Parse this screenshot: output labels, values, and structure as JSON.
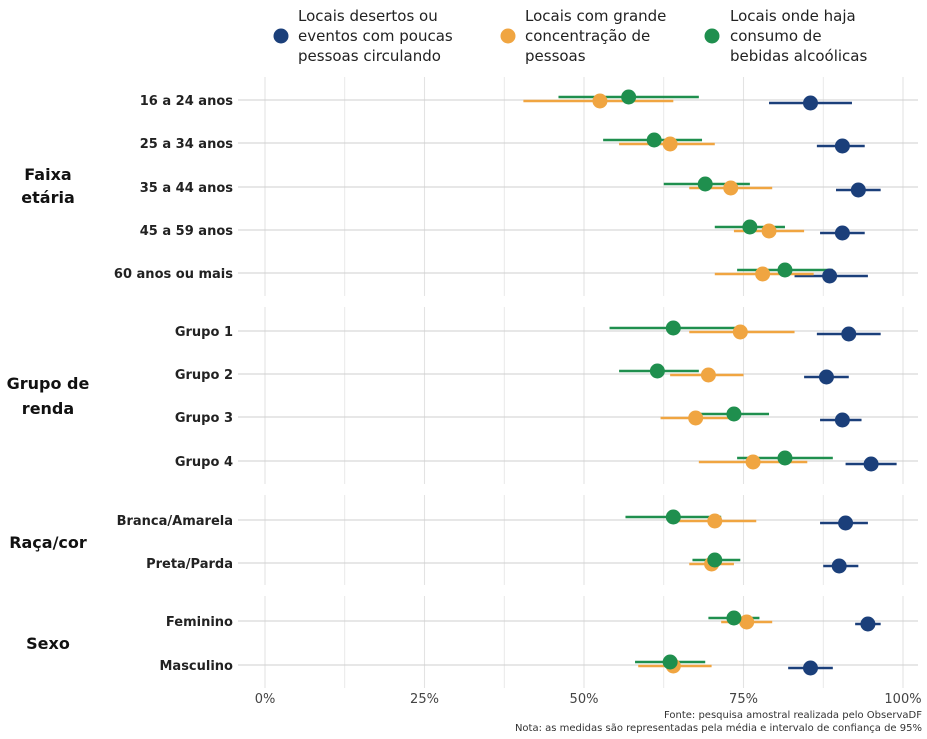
{
  "chart_data": {
    "type": "scatter",
    "subtype": "dot-and-whisker",
    "title": "",
    "xlabel": "",
    "ylabel": "",
    "xlim": [
      0,
      1
    ],
    "x_ticks": [
      0,
      0.25,
      0.5,
      0.75,
      1.0
    ],
    "x_tick_labels": [
      "0%",
      "25%",
      "50%",
      "75%",
      "100%"
    ],
    "grid": true,
    "legend_position": "top",
    "series": [
      {
        "name": "Locais desertos ou eventos com poucas pessoas circulando",
        "color": "#1b3f7a"
      },
      {
        "name": "Locais com grande concentração de pessoas",
        "color": "#f0a541"
      },
      {
        "name": "Locais onde haja consumo de bebidas alcoólicas",
        "color": "#1f8f4e"
      }
    ],
    "legend_lines": [
      [
        "Locais desertos ou",
        "eventos com poucas",
        "pessoas circulando"
      ],
      [
        "Locais com grande",
        "concentração de",
        "pessoas"
      ],
      [
        "Locais onde haja",
        "consumo de",
        "bebidas alcoólicas"
      ]
    ],
    "groups": [
      {
        "label_lines": [
          "Faixa",
          "etária"
        ],
        "categories": [
          {
            "label": "16 a 24 anos",
            "values": [
              {
                "mean": 0.855,
                "low": 0.79,
                "high": 0.92
              },
              {
                "mean": 0.525,
                "low": 0.405,
                "high": 0.64
              },
              {
                "mean": 0.57,
                "low": 0.46,
                "high": 0.68
              }
            ]
          },
          {
            "label": "25 a 34 anos",
            "values": [
              {
                "mean": 0.905,
                "low": 0.865,
                "high": 0.94
              },
              {
                "mean": 0.635,
                "low": 0.555,
                "high": 0.705
              },
              {
                "mean": 0.61,
                "low": 0.53,
                "high": 0.685
              }
            ]
          },
          {
            "label": "35 a 44 anos",
            "values": [
              {
                "mean": 0.93,
                "low": 0.895,
                "high": 0.965
              },
              {
                "mean": 0.73,
                "low": 0.665,
                "high": 0.795
              },
              {
                "mean": 0.69,
                "low": 0.625,
                "high": 0.76
              }
            ]
          },
          {
            "label": "45 a 59 anos",
            "values": [
              {
                "mean": 0.905,
                "low": 0.87,
                "high": 0.94
              },
              {
                "mean": 0.79,
                "low": 0.735,
                "high": 0.845
              },
              {
                "mean": 0.76,
                "low": 0.705,
                "high": 0.815
              }
            ]
          },
          {
            "label": "60 anos ou mais",
            "values": [
              {
                "mean": 0.885,
                "low": 0.83,
                "high": 0.945
              },
              {
                "mean": 0.78,
                "low": 0.705,
                "high": 0.86
              },
              {
                "mean": 0.815,
                "low": 0.74,
                "high": 0.89
              }
            ]
          }
        ]
      },
      {
        "label_lines": [
          "Grupo de",
          "renda"
        ],
        "categories": [
          {
            "label": "Grupo 1",
            "values": [
              {
                "mean": 0.915,
                "low": 0.865,
                "high": 0.965
              },
              {
                "mean": 0.745,
                "low": 0.665,
                "high": 0.83
              },
              {
                "mean": 0.64,
                "low": 0.54,
                "high": 0.745
              }
            ]
          },
          {
            "label": "Grupo 2",
            "values": [
              {
                "mean": 0.88,
                "low": 0.845,
                "high": 0.915
              },
              {
                "mean": 0.695,
                "low": 0.635,
                "high": 0.75
              },
              {
                "mean": 0.615,
                "low": 0.555,
                "high": 0.68
              }
            ]
          },
          {
            "label": "Grupo 3",
            "values": [
              {
                "mean": 0.905,
                "low": 0.87,
                "high": 0.935
              },
              {
                "mean": 0.675,
                "low": 0.62,
                "high": 0.735
              },
              {
                "mean": 0.735,
                "low": 0.68,
                "high": 0.79
              }
            ]
          },
          {
            "label": "Grupo 4",
            "values": [
              {
                "mean": 0.95,
                "low": 0.91,
                "high": 0.99
              },
              {
                "mean": 0.765,
                "low": 0.68,
                "high": 0.85
              },
              {
                "mean": 0.815,
                "low": 0.74,
                "high": 0.89
              }
            ]
          }
        ]
      },
      {
        "label_lines": [
          "Raça/cor"
        ],
        "categories": [
          {
            "label": "Branca/Amarela",
            "values": [
              {
                "mean": 0.91,
                "low": 0.87,
                "high": 0.945
              },
              {
                "mean": 0.705,
                "low": 0.64,
                "high": 0.77
              },
              {
                "mean": 0.64,
                "low": 0.565,
                "high": 0.715
              }
            ]
          },
          {
            "label": "Preta/Parda",
            "values": [
              {
                "mean": 0.9,
                "low": 0.875,
                "high": 0.93
              },
              {
                "mean": 0.7,
                "low": 0.665,
                "high": 0.735
              },
              {
                "mean": 0.705,
                "low": 0.67,
                "high": 0.745
              }
            ]
          }
        ]
      },
      {
        "label_lines": [
          "Sexo"
        ],
        "categories": [
          {
            "label": "Feminino",
            "values": [
              {
                "mean": 0.945,
                "low": 0.925,
                "high": 0.965
              },
              {
                "mean": 0.755,
                "low": 0.715,
                "high": 0.795
              },
              {
                "mean": 0.735,
                "low": 0.695,
                "high": 0.775
              }
            ]
          },
          {
            "label": "Masculino",
            "values": [
              {
                "mean": 0.855,
                "low": 0.82,
                "high": 0.89
              },
              {
                "mean": 0.64,
                "low": 0.585,
                "high": 0.7
              },
              {
                "mean": 0.635,
                "low": 0.58,
                "high": 0.69
              }
            ]
          }
        ]
      }
    ],
    "footnotes": [
      "Fonte: pesquisa amostral realizada pelo ObservaDF",
      "Nota: as medidas são representadas pela média e intervalo de confiança de 95%"
    ]
  }
}
